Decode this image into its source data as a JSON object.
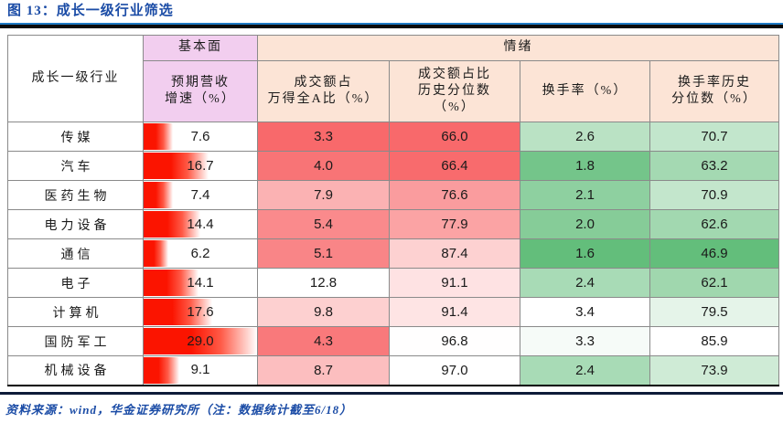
{
  "figure": {
    "title": "图 13：成长一级行业筛选",
    "source_note": "资料来源：wind，华金证券研究所（注：数据统计截至6/18）"
  },
  "table": {
    "corner_header": "成长一级行业",
    "group_fundamentals": {
      "label": "基本面",
      "bg": "#F2CEEF"
    },
    "group_sentiment": {
      "label": "情绪",
      "bg": "#FCE4D6"
    },
    "columns": [
      {
        "label": "预期营收\n增速（%）"
      },
      {
        "label": "成交额占\n万得全A比（%）"
      },
      {
        "label": "成交额占比\n历史分位数\n（%）"
      },
      {
        "label": "换手率（%）"
      },
      {
        "label": "换手率历史\n分位数（%）"
      }
    ],
    "bar_scale_max": 29.0,
    "bar_color": "#FB1400",
    "heat_red": "#F8696B",
    "heat_green": "#63BE7B",
    "rows": [
      {
        "industry": "传媒",
        "growth": 7.6,
        "growth_display": "7.6",
        "cells": [
          {
            "value": "3.3",
            "bg": "#F8696B"
          },
          {
            "value": "66.0",
            "bg": "#F8696B"
          },
          {
            "value": "2.6",
            "bg": "#BAE2C4"
          },
          {
            "value": "70.7",
            "bg": "#C2E6CC"
          }
        ]
      },
      {
        "industry": "汽车",
        "growth": 16.7,
        "growth_display": "16.7",
        "cells": [
          {
            "value": "4.0",
            "bg": "#F87476"
          },
          {
            "value": "66.4",
            "bg": "#F86B6D"
          },
          {
            "value": "1.8",
            "bg": "#74C58A"
          },
          {
            "value": "63.2",
            "bg": "#A4D9B2"
          }
        ]
      },
      {
        "industry": "医药生物",
        "growth": 7.4,
        "growth_display": "7.4",
        "cells": [
          {
            "value": "7.9",
            "bg": "#FBB2B3"
          },
          {
            "value": "76.6",
            "bg": "#FA9C9E"
          },
          {
            "value": "2.1",
            "bg": "#8ED0A0"
          },
          {
            "value": "70.9",
            "bg": "#C3E6CC"
          }
        ]
      },
      {
        "industry": "电力设备",
        "growth": 14.4,
        "growth_display": "14.4",
        "cells": [
          {
            "value": "5.4",
            "bg": "#FA8A8C"
          },
          {
            "value": "77.9",
            "bg": "#FBA3A4"
          },
          {
            "value": "2.0",
            "bg": "#86CC98"
          },
          {
            "value": "62.6",
            "bg": "#A2D8B0"
          }
        ]
      },
      {
        "industry": "通信",
        "growth": 6.2,
        "growth_display": "6.2",
        "cells": [
          {
            "value": "5.1",
            "bg": "#F98587"
          },
          {
            "value": "87.4",
            "bg": "#FDD1D1"
          },
          {
            "value": "1.6",
            "bg": "#63BE7B"
          },
          {
            "value": "46.9",
            "bg": "#63BE7B"
          }
        ]
      },
      {
        "industry": "电子",
        "growth": 14.1,
        "growth_display": "14.1",
        "cells": [
          {
            "value": "12.8",
            "bg": "#FFFFFF"
          },
          {
            "value": "91.1",
            "bg": "#FEE2E3"
          },
          {
            "value": "2.4",
            "bg": "#A8DBB6"
          },
          {
            "value": "62.1",
            "bg": "#A0D7AE"
          }
        ]
      },
      {
        "industry": "计算机",
        "growth": 17.6,
        "growth_display": "17.6",
        "cells": [
          {
            "value": "9.8",
            "bg": "#FDD0D0"
          },
          {
            "value": "91.4",
            "bg": "#FEE4E4"
          },
          {
            "value": "3.4",
            "bg": "#FFFFFF"
          },
          {
            "value": "79.5",
            "bg": "#E5F4E9"
          }
        ]
      },
      {
        "industry": "国防军工",
        "growth": 29.0,
        "growth_display": "29.0",
        "cells": [
          {
            "value": "4.3",
            "bg": "#F9797B"
          },
          {
            "value": "96.8",
            "bg": "#FFFEFE"
          },
          {
            "value": "3.3",
            "bg": "#F6FBF8"
          },
          {
            "value": "85.9",
            "bg": "#FFFFFF"
          }
        ]
      },
      {
        "industry": "机械设备",
        "growth": 9.1,
        "growth_display": "9.1",
        "cells": [
          {
            "value": "8.7",
            "bg": "#FCBEBF"
          },
          {
            "value": "97.0",
            "bg": "#FFFFFF"
          },
          {
            "value": "2.4",
            "bg": "#A8DBB6"
          },
          {
            "value": "73.9",
            "bg": "#CFEBD6"
          }
        ]
      }
    ]
  },
  "chart_data": {
    "type": "table",
    "title": "图 13：成长一级行业筛选",
    "row_header": "成长一级行业",
    "column_groups": [
      {
        "name": "基本面",
        "columns": [
          "预期营收增速（%）"
        ]
      },
      {
        "name": "情绪",
        "columns": [
          "成交额占万得全A比（%）",
          "成交额占比历史分位数（%）",
          "换手率（%）",
          "换手率历史分位数（%）"
        ]
      }
    ],
    "categories": [
      "传媒",
      "汽车",
      "医药生物",
      "电力设备",
      "通信",
      "电子",
      "计算机",
      "国防军工",
      "机械设备"
    ],
    "series": [
      {
        "name": "预期营收增速（%）",
        "values": [
          7.6,
          16.7,
          7.4,
          14.4,
          6.2,
          14.1,
          17.6,
          29.0,
          9.1
        ]
      },
      {
        "name": "成交额占万得全A比（%）",
        "values": [
          3.3,
          4.0,
          7.9,
          5.4,
          5.1,
          12.8,
          9.8,
          4.3,
          8.7
        ]
      },
      {
        "name": "成交额占比历史分位数（%）",
        "values": [
          66.0,
          66.4,
          76.6,
          77.9,
          87.4,
          91.1,
          91.4,
          96.8,
          97.0
        ]
      },
      {
        "name": "换手率（%）",
        "values": [
          2.6,
          1.8,
          2.1,
          2.0,
          1.6,
          2.4,
          3.4,
          3.3,
          2.4
        ]
      },
      {
        "name": "换手率历史分位数（%）",
        "values": [
          70.7,
          63.2,
          70.9,
          62.6,
          46.9,
          62.1,
          79.5,
          85.9,
          73.9
        ]
      }
    ],
    "notes": "预期营收增速列为红色渐变数据条（0至29.0比例）；成交额两列为红(低)到白(高)色阶；换手率两列为绿(低)到白(高)色阶"
  }
}
